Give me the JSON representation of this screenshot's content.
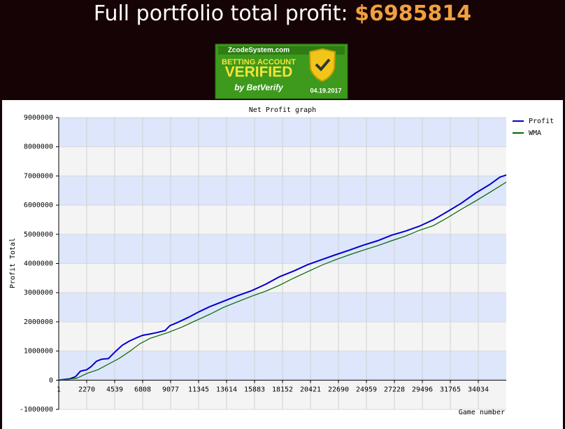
{
  "header": {
    "title": "Full portfolio total profit:",
    "amount": "$6985814"
  },
  "badge": {
    "site": "ZcodeSystem.com",
    "line1": "BETTING ACCOUNT",
    "line2": "VERIFIED",
    "by": "by BetVerify",
    "date": "04.19.2017"
  },
  "chart_data": {
    "type": "line",
    "title": "Net Profit graph",
    "y_label": "Profit Total",
    "x_label": "Game number",
    "xlim": [
      1,
      36302
    ],
    "ylim": [
      -1000000,
      9000000
    ],
    "xticks": [
      1,
      2270,
      4539,
      6808,
      9077,
      11345,
      13614,
      15883,
      18152,
      20421,
      22690,
      24959,
      27228,
      29496,
      31765,
      34034
    ],
    "yticks": [
      -1000000,
      0,
      1000000,
      2000000,
      3000000,
      4000000,
      5000000,
      6000000,
      7000000,
      8000000,
      9000000
    ],
    "grid": true,
    "stripes": [
      "#f4f4f4",
      "#dde6fb"
    ],
    "legend": "top-right",
    "series": [
      {
        "name": "Profit",
        "color": "#0000cc",
        "x": [
          1,
          908,
          1362,
          1759,
          2270,
          2610,
          3064,
          3460,
          4028,
          4595,
          5162,
          5730,
          6354,
          6808,
          7375,
          7942,
          8623,
          9020,
          9700,
          10551,
          11402,
          12253,
          13387,
          14522,
          15656,
          16791,
          17925,
          19060,
          20194,
          21329,
          22463,
          23598,
          24732,
          25866,
          27001,
          28135,
          29270,
          30404,
          31538,
          32673,
          33807,
          34942,
          35792,
          36302
        ],
        "values": [
          0,
          50000,
          120000,
          310000,
          360000,
          460000,
          650000,
          720000,
          740000,
          980000,
          1200000,
          1340000,
          1460000,
          1540000,
          1580000,
          1630000,
          1700000,
          1870000,
          1990000,
          2160000,
          2350000,
          2520000,
          2710000,
          2900000,
          3070000,
          3290000,
          3550000,
          3740000,
          3960000,
          4130000,
          4300000,
          4460000,
          4630000,
          4780000,
          4970000,
          5110000,
          5280000,
          5500000,
          5780000,
          6070000,
          6410000,
          6700000,
          6960000,
          7030000
        ]
      },
      {
        "name": "WMA",
        "color": "#006600",
        "x": [
          1,
          1475,
          2326,
          3177,
          4028,
          4879,
          5730,
          6581,
          7431,
          8850,
          9985,
          11119,
          12253,
          13387,
          14522,
          15656,
          16791,
          17925,
          19060,
          20194,
          21329,
          22463,
          23598,
          24732,
          25866,
          27001,
          28135,
          29270,
          30404,
          31538,
          32673,
          33807,
          34942,
          36302
        ],
        "values": [
          0,
          70000,
          240000,
          360000,
          550000,
          740000,
          980000,
          1250000,
          1440000,
          1630000,
          1820000,
          2040000,
          2260000,
          2500000,
          2690000,
          2880000,
          3050000,
          3260000,
          3500000,
          3720000,
          3940000,
          4130000,
          4300000,
          4460000,
          4610000,
          4780000,
          4940000,
          5140000,
          5300000,
          5570000,
          5860000,
          6140000,
          6430000,
          6790000
        ]
      }
    ]
  }
}
